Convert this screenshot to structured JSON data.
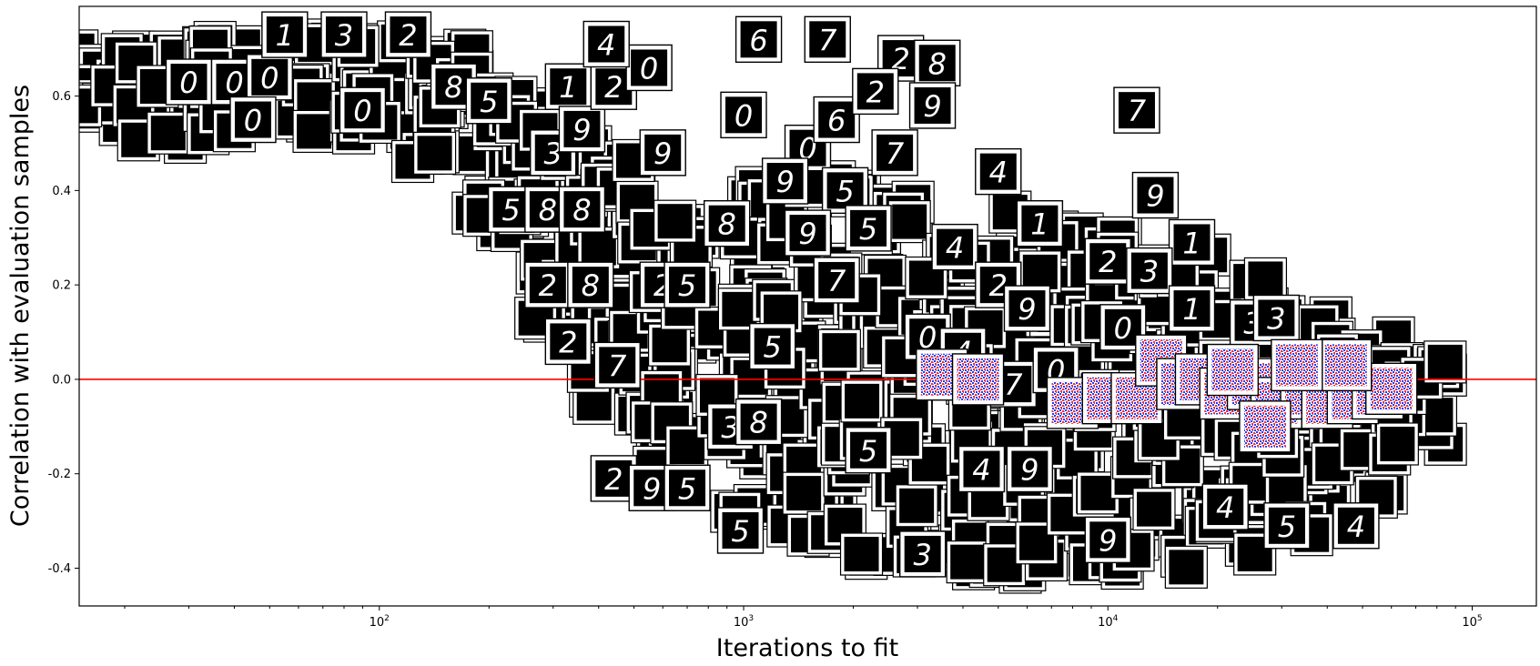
{
  "chart_data": {
    "type": "scatter",
    "title": "",
    "xlabel": "Iterations to fit",
    "ylabel": "Correlation with evaluation samples",
    "x_scale": "log",
    "xlim": [
      15,
      150000
    ],
    "ylim": [
      -0.48,
      0.79
    ],
    "x_ticks": [
      {
        "value": 100,
        "base": "10",
        "exp": "2"
      },
      {
        "value": 1000,
        "base": "10",
        "exp": "3"
      },
      {
        "value": 10000,
        "base": "10",
        "exp": "4"
      },
      {
        "value": 100000,
        "base": "10",
        "exp": "5"
      }
    ],
    "y_ticks": [
      "-0.4",
      "-0.2",
      "0.0",
      "0.2",
      "0.4",
      "0.6"
    ],
    "y_tick_values": [
      -0.4,
      -0.2,
      0.0,
      0.2,
      0.4,
      0.6
    ],
    "reference_line": {
      "y": 0.0,
      "color": "#ff0000"
    },
    "grid": false,
    "legend": "none",
    "marker_style": "framed 28x28 thumbnail images",
    "series": [
      {
        "marker": "digit-image",
        "colors": {
          "background": "#000000",
          "stroke": "#ffffff",
          "frame": "#000000"
        },
        "points": [
          {
            "x": 30,
            "y": 0.63,
            "label": "0"
          },
          {
            "x": 40,
            "y": 0.63,
            "label": "0"
          },
          {
            "x": 50,
            "y": 0.64,
            "label": "0"
          },
          {
            "x": 45,
            "y": 0.55,
            "label": "0"
          },
          {
            "x": 55,
            "y": 0.73,
            "label": "1"
          },
          {
            "x": 80,
            "y": 0.73,
            "label": "3"
          },
          {
            "x": 120,
            "y": 0.73,
            "label": "2"
          },
          {
            "x": 90,
            "y": 0.57,
            "label": "0"
          },
          {
            "x": 160,
            "y": 0.62,
            "label": "8"
          },
          {
            "x": 200,
            "y": 0.59,
            "label": "5"
          },
          {
            "x": 330,
            "y": 0.62,
            "label": "1"
          },
          {
            "x": 300,
            "y": 0.48,
            "label": "3"
          },
          {
            "x": 360,
            "y": 0.53,
            "label": "9"
          },
          {
            "x": 440,
            "y": 0.62,
            "label": "2"
          },
          {
            "x": 550,
            "y": 0.66,
            "label": "0"
          },
          {
            "x": 420,
            "y": 0.71,
            "label": "4"
          },
          {
            "x": 1100,
            "y": 0.72,
            "label": "6"
          },
          {
            "x": 1700,
            "y": 0.72,
            "label": "7"
          },
          {
            "x": 2700,
            "y": 0.68,
            "label": "2"
          },
          {
            "x": 3400,
            "y": 0.67,
            "label": "8"
          },
          {
            "x": 12000,
            "y": 0.57,
            "label": "7"
          },
          {
            "x": 1000,
            "y": 0.56,
            "label": "0"
          },
          {
            "x": 1500,
            "y": 0.49,
            "label": "0"
          },
          {
            "x": 1800,
            "y": 0.55,
            "label": "6"
          },
          {
            "x": 2300,
            "y": 0.61,
            "label": "2"
          },
          {
            "x": 3300,
            "y": 0.58,
            "label": "9"
          },
          {
            "x": 2600,
            "y": 0.48,
            "label": "7"
          },
          {
            "x": 5000,
            "y": 0.44,
            "label": "4"
          },
          {
            "x": 13500,
            "y": 0.39,
            "label": "9"
          },
          {
            "x": 600,
            "y": 0.48,
            "label": "9"
          },
          {
            "x": 230,
            "y": 0.36,
            "label": "5"
          },
          {
            "x": 290,
            "y": 0.36,
            "label": "8"
          },
          {
            "x": 360,
            "y": 0.36,
            "label": "8"
          },
          {
            "x": 900,
            "y": 0.33,
            "label": "8"
          },
          {
            "x": 1300,
            "y": 0.42,
            "label": "9"
          },
          {
            "x": 1900,
            "y": 0.4,
            "label": "5"
          },
          {
            "x": 1500,
            "y": 0.31,
            "label": "9"
          },
          {
            "x": 2200,
            "y": 0.32,
            "label": "5"
          },
          {
            "x": 6500,
            "y": 0.33,
            "label": "1"
          },
          {
            "x": 3800,
            "y": 0.28,
            "label": "4"
          },
          {
            "x": 10000,
            "y": 0.25,
            "label": "2"
          },
          {
            "x": 17000,
            "y": 0.29,
            "label": "1"
          },
          {
            "x": 290,
            "y": 0.2,
            "label": "2"
          },
          {
            "x": 380,
            "y": 0.2,
            "label": "8"
          },
          {
            "x": 600,
            "y": 0.2,
            "label": "2"
          },
          {
            "x": 700,
            "y": 0.2,
            "label": "5"
          },
          {
            "x": 1800,
            "y": 0.21,
            "label": "7"
          },
          {
            "x": 5000,
            "y": 0.2,
            "label": "2"
          },
          {
            "x": 13000,
            "y": 0.23,
            "label": "3"
          },
          {
            "x": 17000,
            "y": 0.15,
            "label": "1"
          },
          {
            "x": 25000,
            "y": 0.12,
            "label": "3"
          },
          {
            "x": 29000,
            "y": 0.13,
            "label": "3"
          },
          {
            "x": 6000,
            "y": 0.15,
            "label": "9"
          },
          {
            "x": 11000,
            "y": 0.11,
            "label": "0"
          },
          {
            "x": 3200,
            "y": 0.09,
            "label": "0"
          },
          {
            "x": 4000,
            "y": 0.06,
            "label": "4"
          },
          {
            "x": 330,
            "y": 0.08,
            "label": "2"
          },
          {
            "x": 450,
            "y": 0.03,
            "label": "7"
          },
          {
            "x": 1200,
            "y": 0.07,
            "label": "5"
          },
          {
            "x": 5500,
            "y": -0.01,
            "label": "7"
          },
          {
            "x": 7200,
            "y": 0.02,
            "label": "0"
          },
          {
            "x": 920,
            "y": -0.1,
            "label": "3"
          },
          {
            "x": 1100,
            "y": -0.09,
            "label": "8"
          },
          {
            "x": 2200,
            "y": -0.15,
            "label": "5"
          },
          {
            "x": 440,
            "y": -0.21,
            "label": "2"
          },
          {
            "x": 560,
            "y": -0.23,
            "label": "9"
          },
          {
            "x": 700,
            "y": -0.23,
            "label": "5"
          },
          {
            "x": 4500,
            "y": -0.19,
            "label": "4"
          },
          {
            "x": 6100,
            "y": -0.19,
            "label": "9"
          },
          {
            "x": 980,
            "y": -0.32,
            "label": "5"
          },
          {
            "x": 3100,
            "y": -0.37,
            "label": "3"
          },
          {
            "x": 10000,
            "y": -0.34,
            "label": "9"
          },
          {
            "x": 21000,
            "y": -0.27,
            "label": "4"
          },
          {
            "x": 31000,
            "y": -0.31,
            "label": "5"
          },
          {
            "x": 48000,
            "y": -0.31,
            "label": "4"
          }
        ]
      },
      {
        "marker": "noise-image",
        "colors": {
          "dots_a": "#1f3dff",
          "dots_b": "#ff2a2a",
          "background": "#ffffff"
        },
        "points": [
          {
            "x": 3500,
            "y": 0.01
          },
          {
            "x": 4400,
            "y": 0.0
          },
          {
            "x": 8000,
            "y": -0.05
          },
          {
            "x": 10000,
            "y": -0.04
          },
          {
            "x": 12000,
            "y": -0.04
          },
          {
            "x": 14000,
            "y": 0.04
          },
          {
            "x": 16000,
            "y": -0.01
          },
          {
            "x": 18000,
            "y": 0.0
          },
          {
            "x": 21000,
            "y": -0.03
          },
          {
            "x": 25000,
            "y": -0.01
          },
          {
            "x": 29000,
            "y": -0.05
          },
          {
            "x": 35000,
            "y": -0.03
          },
          {
            "x": 40000,
            "y": -0.05
          },
          {
            "x": 47000,
            "y": -0.04
          },
          {
            "x": 55000,
            "y": -0.03
          },
          {
            "x": 60000,
            "y": -0.02
          },
          {
            "x": 45000,
            "y": 0.03
          },
          {
            "x": 33000,
            "y": 0.03
          },
          {
            "x": 27000,
            "y": -0.1
          },
          {
            "x": 22000,
            "y": 0.02
          }
        ]
      }
    ]
  }
}
